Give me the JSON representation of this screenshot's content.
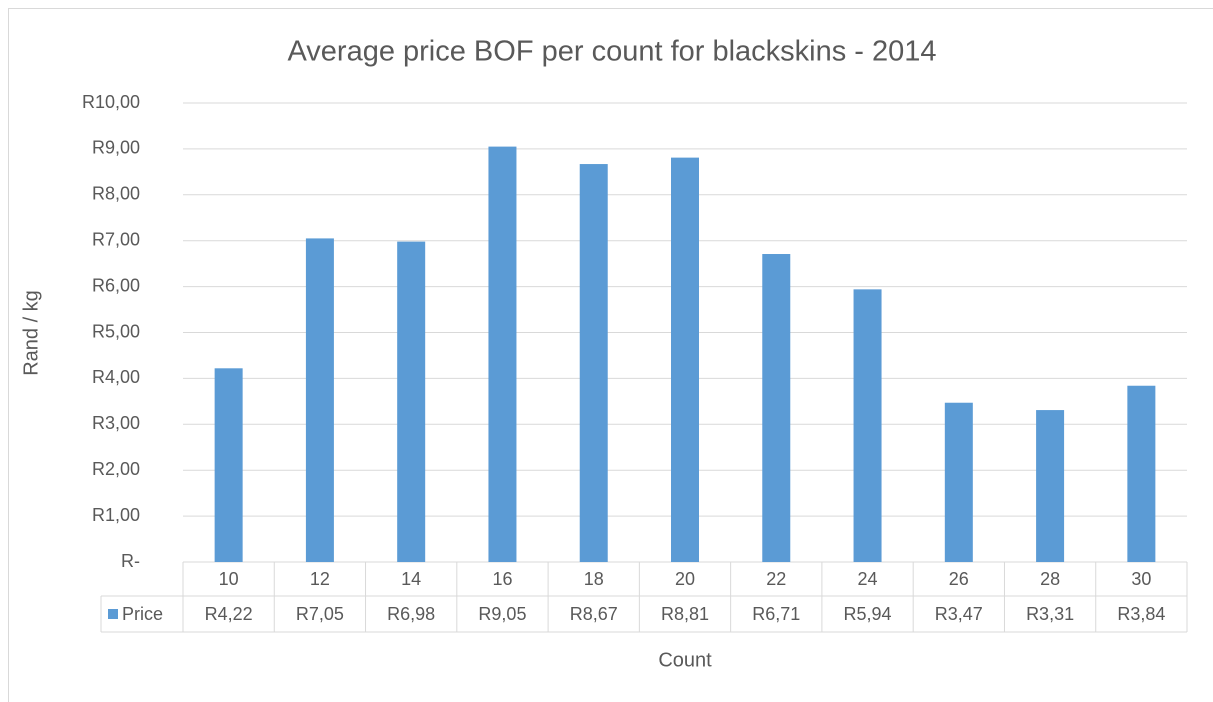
{
  "chart_data": {
    "type": "bar",
    "title": "Average price BOF per count for blackskins - 2014",
    "x_label": "Count",
    "y_label": "Rand / kg",
    "categories": [
      "10",
      "12",
      "14",
      "16",
      "18",
      "20",
      "22",
      "24",
      "26",
      "28",
      "30"
    ],
    "series": [
      {
        "name": "Price",
        "color": "#5b9bd5",
        "values": [
          4.22,
          7.05,
          6.98,
          9.05,
          8.67,
          8.81,
          6.71,
          5.94,
          3.47,
          3.31,
          3.84
        ],
        "value_labels": [
          "R4,22",
          "R7,05",
          "R6,98",
          "R9,05",
          "R8,67",
          "R8,81",
          "R6,71",
          "R5,94",
          "R3,47",
          "R3,31",
          "R3,84"
        ]
      }
    ],
    "ylim": [
      0,
      10
    ],
    "yticks": [
      {
        "value": 0,
        "label": "R-"
      },
      {
        "value": 1,
        "label": "R1,00"
      },
      {
        "value": 2,
        "label": "R2,00"
      },
      {
        "value": 3,
        "label": "R3,00"
      },
      {
        "value": 4,
        "label": "R4,00"
      },
      {
        "value": 5,
        "label": "R5,00"
      },
      {
        "value": 6,
        "label": "R6,00"
      },
      {
        "value": 7,
        "label": "R7,00"
      },
      {
        "value": 8,
        "label": "R8,00"
      },
      {
        "value": 9,
        "label": "R9,00"
      },
      {
        "value": 10,
        "label": "R10,00"
      }
    ],
    "grid": true
  }
}
